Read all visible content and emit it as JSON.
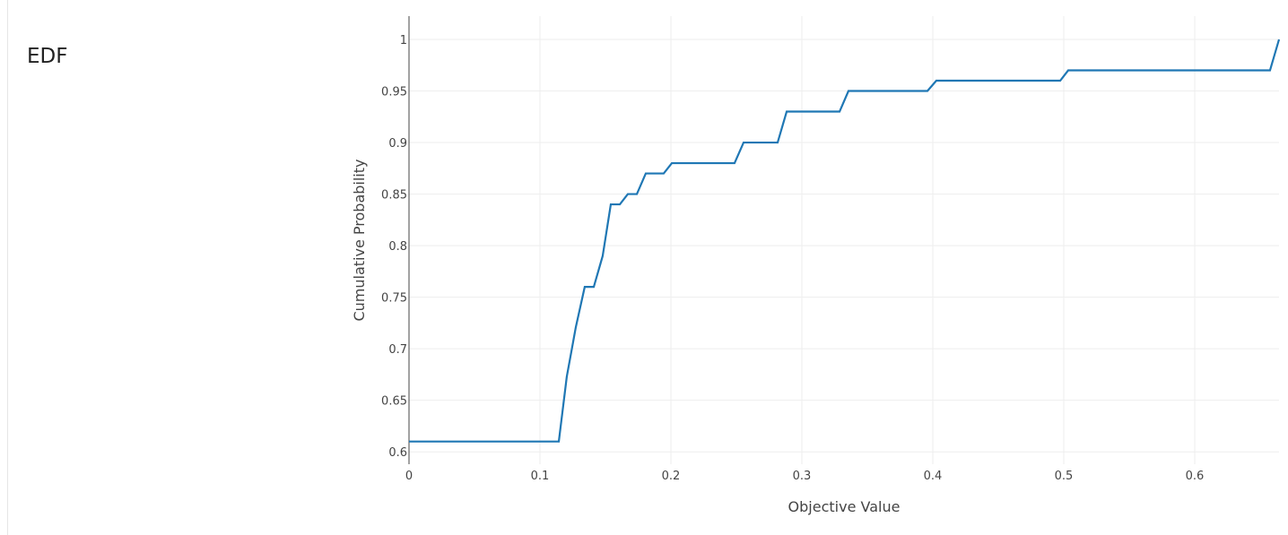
{
  "chart_data": {
    "type": "line",
    "title": "EDF",
    "x_label": "Objective Value",
    "y_label": "Cumulative Probability",
    "x": [
      0,
      0.1144,
      0.1205,
      0.1274,
      0.1342,
      0.1411,
      0.1479,
      0.1541,
      0.161,
      0.1671,
      0.174,
      0.1808,
      0.1945,
      0.2007,
      0.2486,
      0.2555,
      0.2815,
      0.2884,
      0.3288,
      0.3356,
      0.3959,
      0.4027,
      0.4973,
      0.5034,
      0.6575,
      0.6644
    ],
    "values": [
      0.61,
      0.61,
      0.673,
      0.721,
      0.76,
      0.76,
      0.79,
      0.84,
      0.84,
      0.85,
      0.85,
      0.87,
      0.87,
      0.88,
      0.88,
      0.9,
      0.9,
      0.93,
      0.93,
      0.95,
      0.95,
      0.96,
      0.96,
      0.97,
      0.97,
      1
    ],
    "color": "#1f77b4",
    "xlim": [
      0,
      0.6644
    ],
    "xticks": [
      0,
      0.1,
      0.2,
      0.3,
      0.4,
      0.5,
      0.6
    ],
    "ylim": [
      0.588,
      1.0226
    ],
    "yticks": [
      0.6,
      0.65,
      0.7,
      0.75,
      0.8,
      0.85,
      0.9,
      0.95,
      1
    ],
    "grid": true
  }
}
